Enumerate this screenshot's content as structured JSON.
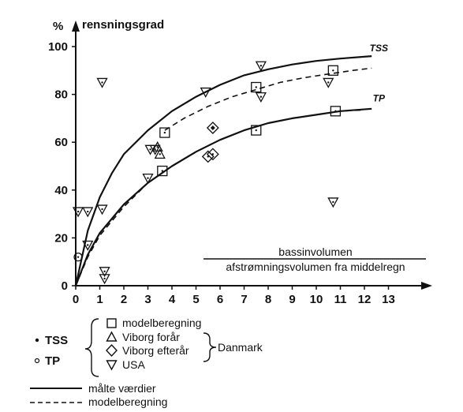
{
  "chart_data": {
    "type": "scatter",
    "ylabel_unit": "%",
    "ylabel": "rensningsgrad",
    "xlabel_numerator": "bassinvolumen",
    "xlabel_denominator": "afstrømningsvolumen fra middelregn",
    "xlim": [
      0,
      13
    ],
    "ylim": [
      0,
      100
    ],
    "x_ticks": [
      "0",
      "1",
      "2",
      "3",
      "4",
      "5",
      "6",
      "7",
      "8",
      "9",
      "10",
      "11",
      "12",
      "13"
    ],
    "y_ticks": [
      "0",
      "20",
      "40",
      "60",
      "80",
      "100"
    ],
    "grid": false,
    "curves": [
      {
        "name": "TSS",
        "style": "solid",
        "x": [
          0,
          0.5,
          1,
          1.5,
          2,
          3,
          4,
          5,
          6,
          7,
          8,
          9,
          10,
          11,
          12.3
        ],
        "y": [
          0,
          23,
          37,
          47,
          55,
          65,
          73,
          79,
          84,
          88,
          90.5,
          92.5,
          94,
          95,
          96
        ]
      },
      {
        "name": "TSS",
        "style": "dashed",
        "x": [
          3.7,
          4.5,
          5.5,
          6.5,
          7.5,
          8.5,
          9.5,
          10.5,
          11.5,
          12.3
        ],
        "y": [
          65,
          70,
          75,
          79,
          82,
          85,
          87,
          88.5,
          90,
          91
        ]
      },
      {
        "name": "TP",
        "style": "solid",
        "x": [
          0,
          0.5,
          1,
          2,
          3,
          4,
          5,
          6,
          7,
          8,
          9,
          10,
          11,
          12.3
        ],
        "y": [
          0,
          13,
          22,
          34,
          43,
          50,
          56,
          61,
          65,
          68,
          70,
          71.5,
          73,
          74
        ]
      },
      {
        "name": "TP",
        "style": "dashed",
        "x": [
          0,
          0.5,
          1,
          2,
          3,
          4,
          5,
          6,
          7,
          8,
          9,
          10,
          11,
          12
        ],
        "y": [
          0,
          12,
          21,
          33,
          43,
          50,
          56,
          61,
          65,
          68,
          70,
          71.5,
          73,
          73.5
        ]
      }
    ],
    "points": [
      {
        "x": 0.1,
        "y": 12,
        "marker": "circle",
        "fill": "open"
      },
      {
        "x": 0.1,
        "y": 31,
        "marker": "triangle-down",
        "fill": "open"
      },
      {
        "x": 0.5,
        "y": 31,
        "marker": "triangle-down",
        "fill": "open"
      },
      {
        "x": 0.5,
        "y": 17,
        "marker": "triangle-down",
        "fill": "open"
      },
      {
        "x": 1.1,
        "y": 32,
        "marker": "triangle-down",
        "fill": "open"
      },
      {
        "x": 1.1,
        "y": 85,
        "marker": "triangle-down",
        "fill": "open"
      },
      {
        "x": 1.2,
        "y": 6,
        "marker": "triangle-down",
        "fill": "open"
      },
      {
        "x": 1.2,
        "y": 3,
        "marker": "triangle-down",
        "fill": "open"
      },
      {
        "x": 3.0,
        "y": 45,
        "marker": "triangle-down",
        "fill": "open"
      },
      {
        "x": 3.1,
        "y": 57,
        "marker": "triangle-down",
        "fill": "open"
      },
      {
        "x": 3.3,
        "y": 57,
        "marker": "triangle-down",
        "fill": "open"
      },
      {
        "x": 3.4,
        "y": 58,
        "marker": "triangle-up",
        "fill": "open"
      },
      {
        "x": 3.5,
        "y": 55,
        "marker": "triangle-up",
        "fill": "open"
      },
      {
        "x": 3.6,
        "y": 48,
        "marker": "square",
        "fill": "open"
      },
      {
        "x": 3.7,
        "y": 64,
        "marker": "square",
        "fill": "open"
      },
      {
        "x": 5.4,
        "y": 81,
        "marker": "triangle-down",
        "fill": "open"
      },
      {
        "x": 5.5,
        "y": 54,
        "marker": "diamond",
        "fill": "open"
      },
      {
        "x": 5.7,
        "y": 55,
        "marker": "diamond",
        "fill": "open"
      },
      {
        "x": 5.7,
        "y": 66,
        "marker": "diamond",
        "fill": "filled"
      },
      {
        "x": 7.5,
        "y": 65,
        "marker": "square",
        "fill": "open"
      },
      {
        "x": 7.5,
        "y": 83,
        "marker": "square",
        "fill": "open"
      },
      {
        "x": 7.7,
        "y": 79,
        "marker": "triangle-down",
        "fill": "open"
      },
      {
        "x": 7.7,
        "y": 92,
        "marker": "triangle-down",
        "fill": "open"
      },
      {
        "x": 10.5,
        "y": 85,
        "marker": "triangle-down",
        "fill": "open"
      },
      {
        "x": 10.7,
        "y": 90,
        "marker": "square",
        "fill": "open"
      },
      {
        "x": 10.8,
        "y": 73,
        "marker": "square",
        "fill": "open"
      },
      {
        "x": 10.7,
        "y": 35,
        "marker": "triangle-down",
        "fill": "open"
      }
    ],
    "curve_labels": [
      {
        "text": "TSS",
        "x": 12.6,
        "y": 98
      },
      {
        "text": "TP",
        "x": 12.6,
        "y": 77
      }
    ]
  },
  "legend": {
    "measures": [
      "TSS",
      "TP"
    ],
    "methods": [
      "modelberegning",
      "Viborg forår",
      "Viborg efterår",
      "USA"
    ],
    "group_label": "Danmark",
    "lines": [
      {
        "style": "solid",
        "label": "målte værdier"
      },
      {
        "style": "dashed",
        "label": "modelberegning"
      }
    ]
  }
}
